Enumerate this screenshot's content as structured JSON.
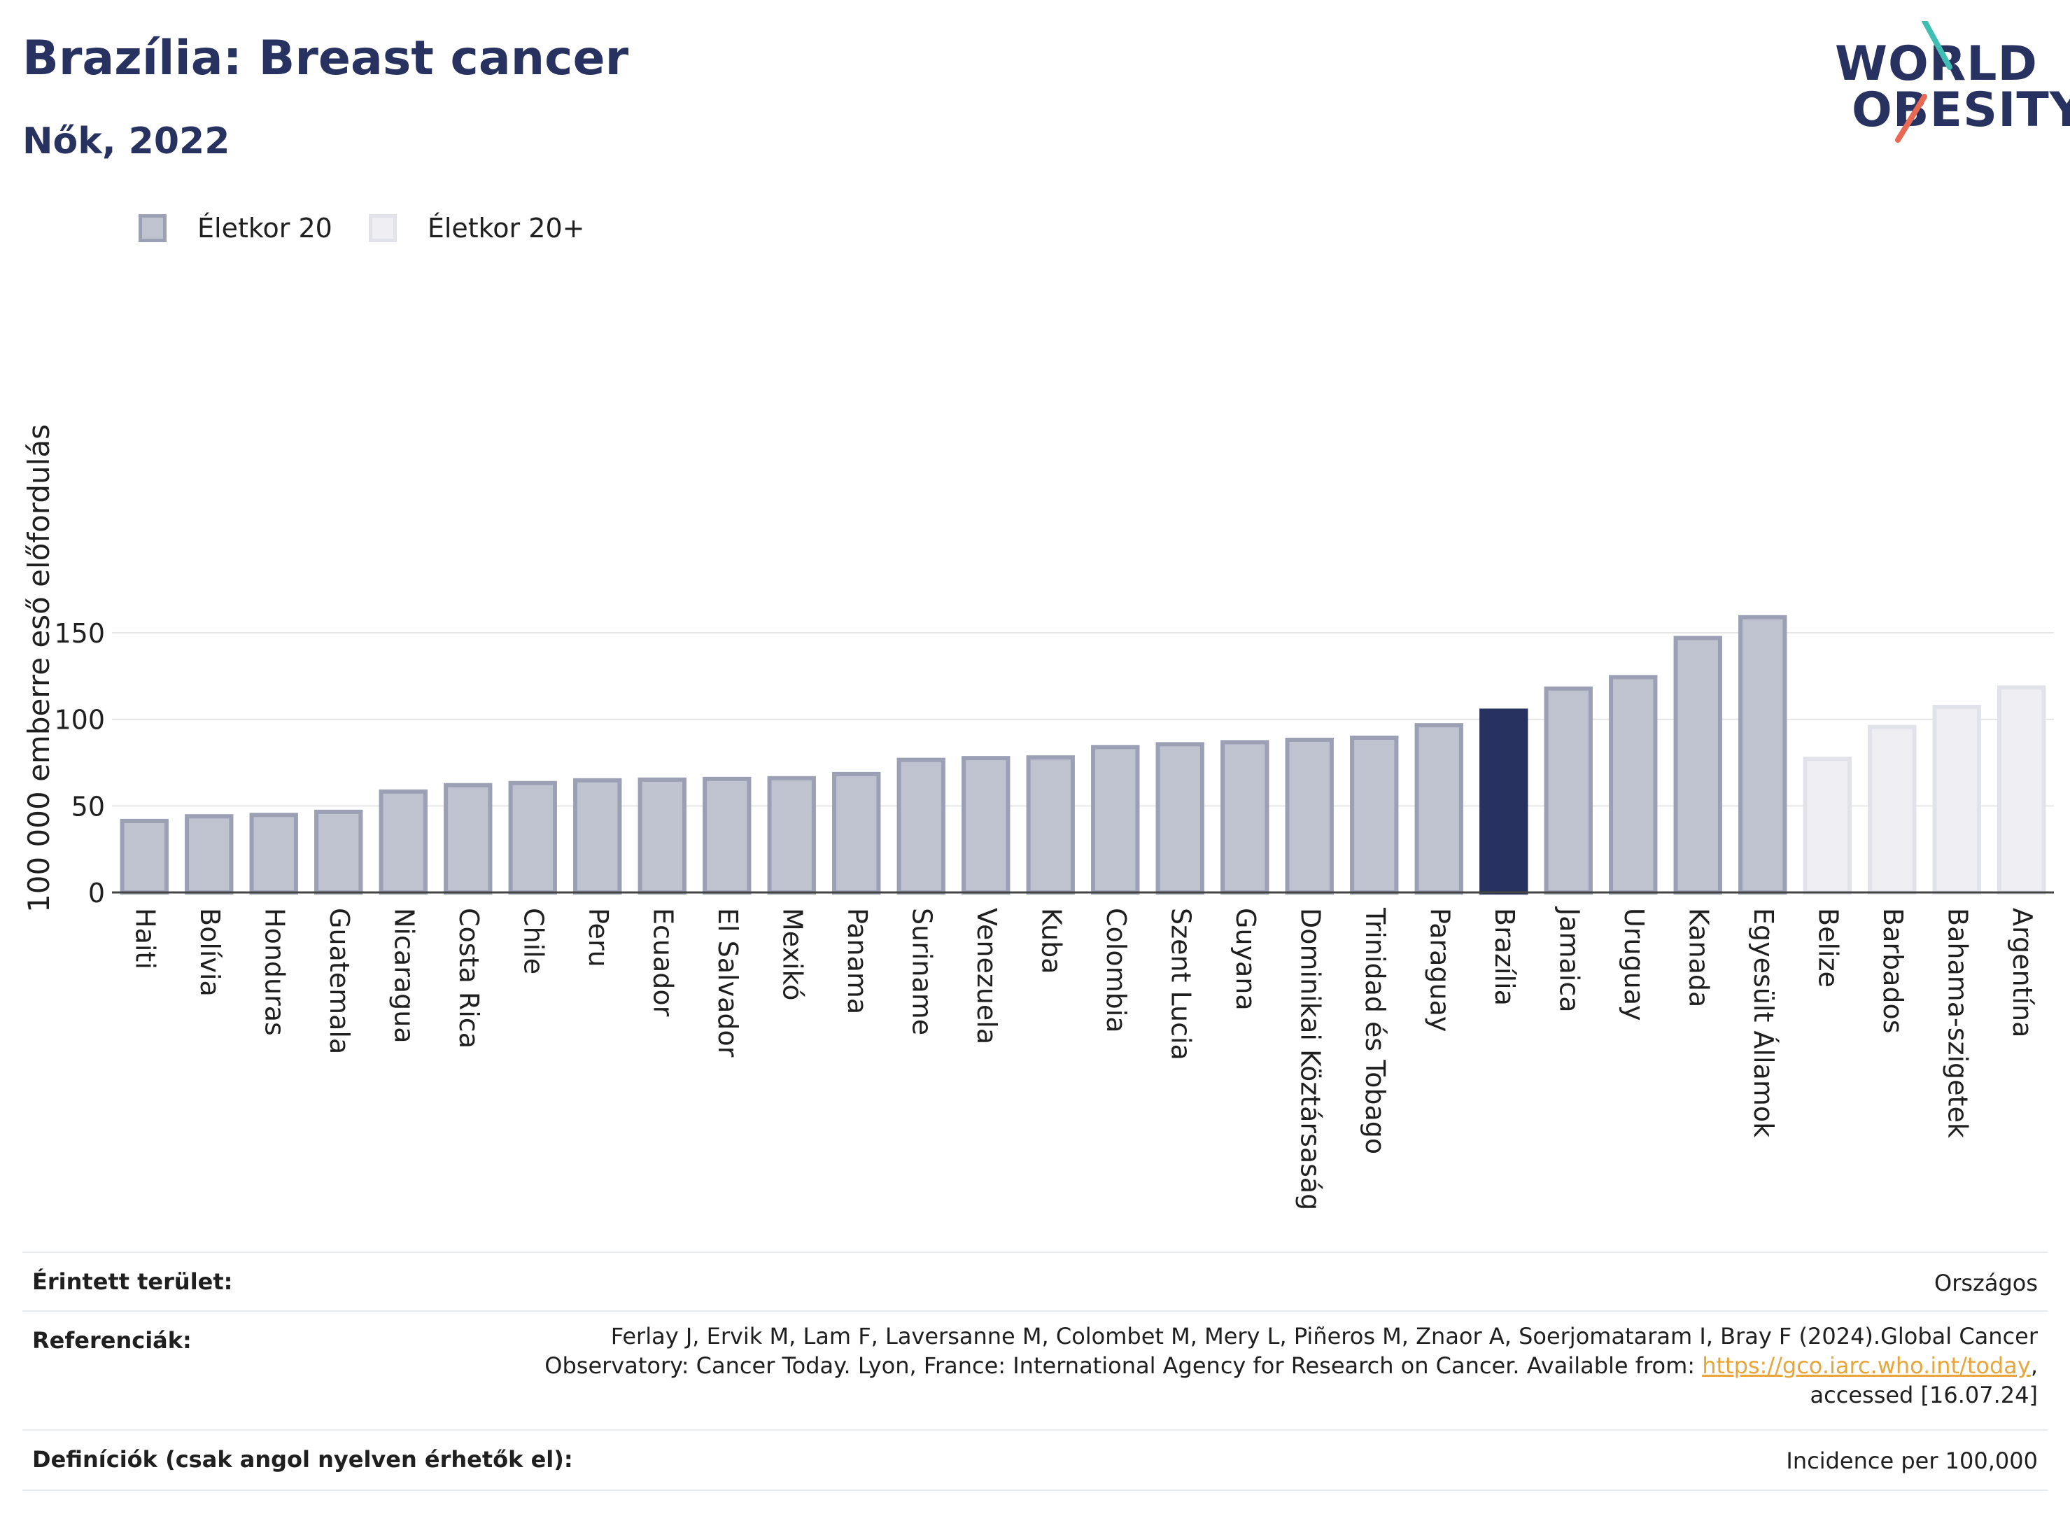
{
  "header": {
    "title": "Brazília: Breast cancer",
    "subtitle": "Nők, 2022"
  },
  "logo": {
    "line1": "WORLD",
    "line2": "OBESITY"
  },
  "legend": [
    {
      "label": "Életkor 20",
      "color": "#bfc2cf",
      "border": "#9ba0b4"
    },
    {
      "label": "Életkor 20+",
      "color": "#eeeef3",
      "border": "#e2e3ea"
    }
  ],
  "colors": {
    "highlight": "#283260",
    "age20": "#bfc2cf",
    "age20_border": "#9ba0b4",
    "age20plus": "#eeeef3",
    "age20plus_border": "#e2e3ea"
  },
  "chart_data": {
    "type": "bar",
    "title": "Brazília: Breast cancer",
    "subtitle": "Nők, 2022",
    "ylabel": "100 000 emberre eső előfordulás",
    "xlabel": "",
    "ylim": [
      0,
      170
    ],
    "yticks": [
      0,
      50,
      100,
      150
    ],
    "grid": true,
    "legend_position": "top-left",
    "highlight": "Brazília",
    "categories": [
      "Haiti",
      "Bolívia",
      "Honduras",
      "Guatemala",
      "Nicaragua",
      "Costa Rica",
      "Chile",
      "Peru",
      "Ecuador",
      "El Salvador",
      "Mexikó",
      "Panama",
      "Suriname",
      "Venezuela",
      "Kuba",
      "Colombia",
      "Szent Lucia",
      "Guyana",
      "Dominikai Köztársaság",
      "Trinidad és Tobago",
      "Paraguay",
      "Brazília",
      "Jamaica",
      "Uruguay",
      "Kanada",
      "Egyesült Államok",
      "Belize",
      "Barbados",
      "Bahama-szigetek",
      "Argentína"
    ],
    "values": [
      42.5,
      45.2,
      46.0,
      47.8,
      59.5,
      63.2,
      64.4,
      66.0,
      66.4,
      66.8,
      67.2,
      69.6,
      77.8,
      78.8,
      79.2,
      85.2,
      86.8,
      88.0,
      89.4,
      90.6,
      97.8,
      106.2,
      119.0,
      125.6,
      148.2,
      160.2,
      78.4,
      96.8,
      108.4,
      119.6
    ],
    "series_group": [
      "Életkor 20",
      "Életkor 20",
      "Életkor 20",
      "Életkor 20",
      "Életkor 20",
      "Életkor 20",
      "Életkor 20",
      "Életkor 20",
      "Életkor 20",
      "Életkor 20",
      "Életkor 20",
      "Életkor 20",
      "Életkor 20",
      "Életkor 20",
      "Életkor 20",
      "Életkor 20",
      "Életkor 20",
      "Életkor 20",
      "Életkor 20",
      "Életkor 20",
      "Életkor 20",
      "Életkor 20",
      "Életkor 20",
      "Életkor 20",
      "Életkor 20",
      "Életkor 20",
      "Életkor 20+",
      "Életkor 20+",
      "Életkor 20+",
      "Életkor 20+"
    ]
  },
  "info": {
    "area_label": "Érintett terület:",
    "area_value": "Országos",
    "ref_label": "Referenciák:",
    "ref_line1": "Ferlay J, Ervik M, Lam F, Laversanne M, Colombet M, Mery L, Piñeros M, Znaor A, Soerjomataram I, Bray F (2024).Global Cancer",
    "ref_line2_pre": "Observatory: Cancer Today. Lyon, France: International Agency for Research on Cancer. Available from: ",
    "ref_link": "https://gco.iarc.who.int/today",
    "ref_line2_post": ",",
    "ref_line3": "accessed [16.07.24]",
    "def_label": "Definíciók (csak angol nyelven érhetők el):",
    "def_value": "Incidence per 100,000"
  }
}
